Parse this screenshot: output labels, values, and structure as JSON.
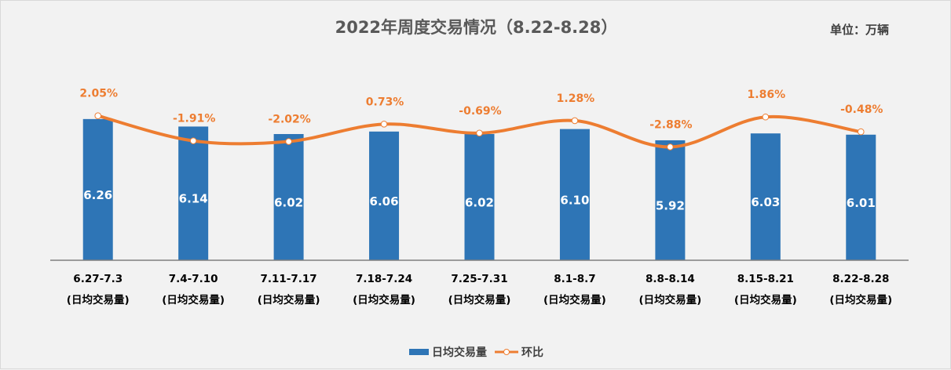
{
  "chart_data": {
    "type": "bar",
    "title": "2022年周度交易情况（8.22-8.28）",
    "unit_label": "单位：万辆",
    "categories": [
      "6.27-7.3",
      "7.4-7.10",
      "7.11-7.17",
      "7.18-7.24",
      "7.25-7.31",
      "8.1-8.7",
      "8.8-8.14",
      "8.15-8.21",
      "8.22-8.28"
    ],
    "category_suffix": "(日均交易量)",
    "series": [
      {
        "name": "日均交易量",
        "type": "bar",
        "color": "#2e75b6",
        "values": [
          6.26,
          6.14,
          6.02,
          6.06,
          6.02,
          6.1,
          5.92,
          6.03,
          6.01
        ],
        "labels": [
          "6.26",
          "6.14",
          "6.02",
          "6.06",
          "6.02",
          "6.10",
          "5.92",
          "6.03",
          "6.01"
        ]
      },
      {
        "name": "环比",
        "type": "line",
        "axis": "secondary",
        "color": "#ed7d31",
        "values": [
          2.05,
          -1.91,
          -2.02,
          0.73,
          -0.69,
          1.28,
          -2.88,
          1.86,
          -0.48
        ],
        "labels": [
          "2.05%",
          "-1.91%",
          "-2.02%",
          "0.73%",
          "-0.69%",
          "1.28%",
          "-2.88%",
          "1.86%",
          "-0.48%"
        ]
      }
    ],
    "ylim": [
      4,
      7.4
    ],
    "y2lim": [
      -20.8,
      12.8
    ],
    "grid": false,
    "legend": "bottom"
  }
}
